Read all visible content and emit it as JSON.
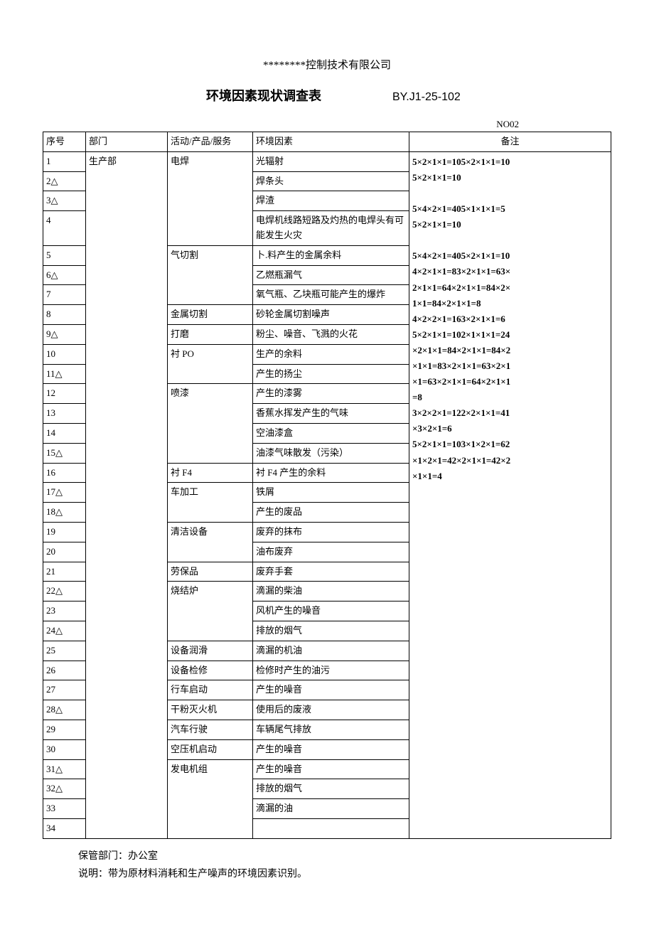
{
  "company_name": "********控制技术有限公司",
  "doc_title": "环境因素现状调查表",
  "doc_code": "BY.J1-25-102",
  "no_label": "NO02",
  "headers": {
    "seq": "序号",
    "dept": "部门",
    "activity": "活动/产品/服务",
    "factor": "环境因素",
    "remark": "备注"
  },
  "dept_value": "生产部",
  "rows": [
    {
      "seq": "1",
      "activity": "电焊",
      "act_span": 4,
      "factor": "光辐射"
    },
    {
      "seq": "2△",
      "factor": "焊条头"
    },
    {
      "seq": "3△",
      "factor": "焊渣"
    },
    {
      "seq": "4",
      "factor": "电焊机线路短路及灼热的电焊头有可能发生火灾"
    },
    {
      "seq": "5",
      "activity": "气切割",
      "act_span": 3,
      "factor": "卜.料产生的金属余料"
    },
    {
      "seq": "6△",
      "factor": "乙燃瓶漏气"
    },
    {
      "seq": "7",
      "factor": "氧气瓶、乙块瓶可能产生的爆炸"
    },
    {
      "seq": "8",
      "activity": "金属切割",
      "act_span": 1,
      "factor": "砂轮金属切割噪声"
    },
    {
      "seq": "9△",
      "activity": "打磨",
      "act_span": 1,
      "factor": "粉尘、噪音、飞溅的火花"
    },
    {
      "seq": "10",
      "activity": "衬 PO",
      "act_span": 2,
      "factor": "生产的余料"
    },
    {
      "seq": "11△",
      "factor": "产生的扬尘"
    },
    {
      "seq": "12",
      "activity": "喷漆",
      "act_span": 4,
      "factor": "产生的漆雾"
    },
    {
      "seq": "13",
      "factor": "香蕉水挥发产生的气味"
    },
    {
      "seq": "14",
      "factor": "空油漆盒"
    },
    {
      "seq": "15△",
      "factor": "油漆气味散发（污染）"
    },
    {
      "seq": "16",
      "activity": "衬 F4",
      "act_span": 1,
      "factor": "衬 F4 产生的余料"
    },
    {
      "seq": "17△",
      "activity": "车加工",
      "act_span": 2,
      "factor": "铁屑"
    },
    {
      "seq": "18△",
      "factor": "产生的废品"
    },
    {
      "seq": "19",
      "activity": "清洁设备",
      "act_span": 2,
      "factor": "废弃的抹布"
    },
    {
      "seq": "20",
      "factor": "油布废弃"
    },
    {
      "seq": "21",
      "activity": "劳保品",
      "act_span": 1,
      "factor": "废弃手套"
    },
    {
      "seq": "22△",
      "activity": "烧结炉",
      "act_span": 3,
      "factor": "滴漏的柴油"
    },
    {
      "seq": "23",
      "factor": "风机产生的噪音"
    },
    {
      "seq": "24△",
      "factor": "排放的烟气"
    },
    {
      "seq": "25",
      "activity": "设备润滑",
      "act_span": 1,
      "factor": "滴漏的机油"
    },
    {
      "seq": "26",
      "activity": "设备检修",
      "act_span": 1,
      "factor": "检修时产生的油污"
    },
    {
      "seq": "27",
      "activity": "行车启动",
      "act_span": 1,
      "factor": "产生的噪音"
    },
    {
      "seq": "28△",
      "activity": "干粉灭火机",
      "act_span": 1,
      "factor": "使用后的废液"
    },
    {
      "seq": "29",
      "activity": "汽车行驶",
      "act_span": 1,
      "factor": "车辆尾气排放"
    },
    {
      "seq": "30",
      "activity": "空压机启动",
      "act_span": 1,
      "factor": "产生的噪音"
    },
    {
      "seq": "31△",
      "activity": "发电机组",
      "act_span": 4,
      "factor": "产生的噪音"
    },
    {
      "seq": "32△",
      "factor": "排放的烟气"
    },
    {
      "seq": "33",
      "factor": "滴漏的油"
    },
    {
      "seq": "34",
      "factor": ""
    }
  ],
  "remark_lines": [
    "5×2×1×1=105×2×1×1=10",
    "5×2×1×1=10",
    "",
    "5×4×2×1=405×1×1×1=5",
    "5×2×1×1=10",
    "",
    "5×4×2×1=405×2×1×1=10",
    "4×2×1×1=83×2×1×1=63×",
    "2×1×1=64×2×1×1=84×2×",
    "1×1=84×2×1×1=8",
    "4×2×2×1=163×2×1×1=6",
    "5×2×1×1=102×1×1×1=24",
    "×2×1×1=84×2×1×1=84×2",
    "×1×1=83×2×1×1=63×2×1",
    "×1=63×2×1×1=64×2×1×1",
    "=8",
    "3×2×2×1=122×2×1×1=41",
    "×3×2×1=6",
    "5×2×1×1=103×1×2×1=62",
    "×1×2×1=42×2×1×1=42×2",
    "×1×1=4"
  ],
  "footer_line1": "保管部门：办公室",
  "footer_line2": "说明：带为原材料消耗和生产噪声的环境因素识别。"
}
